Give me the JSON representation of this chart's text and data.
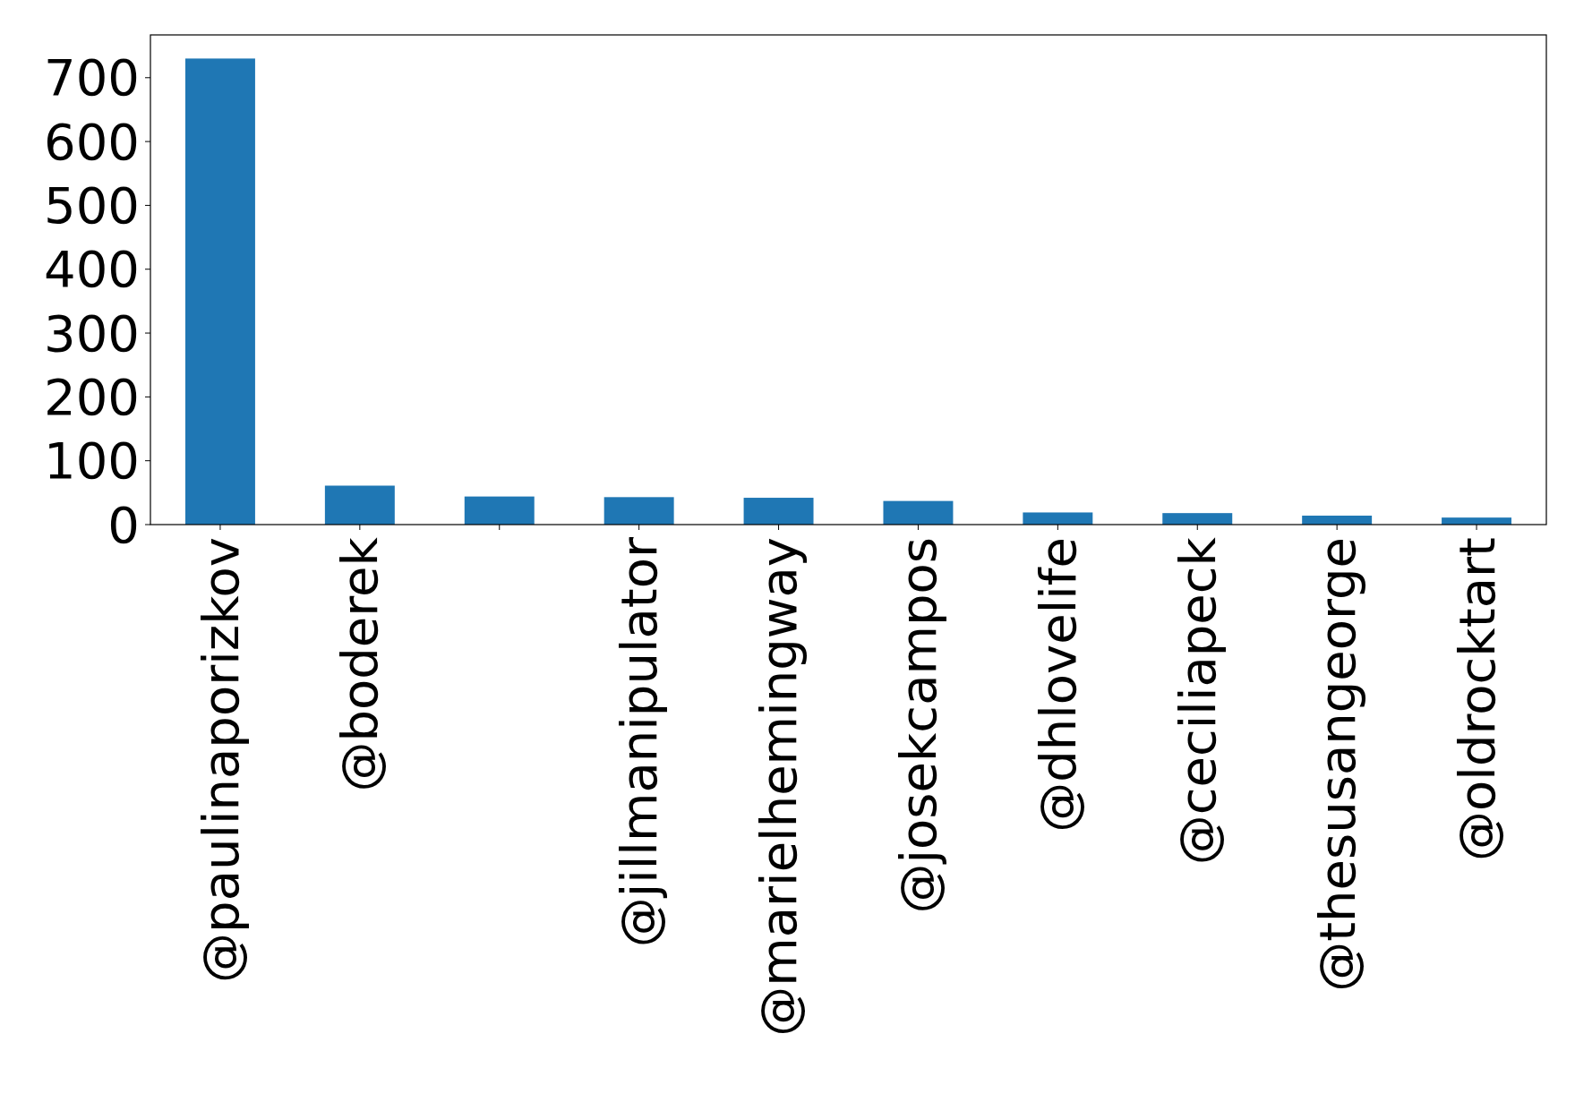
{
  "chart_data": {
    "type": "bar",
    "categories": [
      "@paulinaporizkov",
      "@boderek",
      null,
      "@jillmanipulator",
      "@marielhemingway",
      "@josekcampos",
      "@dhlovelife",
      "@ceciliapeck",
      "@thesusangeorge",
      "@oldrocktart"
    ],
    "values": [
      730,
      61,
      44,
      43,
      42,
      37,
      19,
      18,
      14,
      11
    ],
    "color": "#1f77b4",
    "ylim": [
      0,
      767
    ],
    "yticks": [
      0,
      100,
      200,
      300,
      400,
      500,
      600,
      700
    ],
    "grid": false
  }
}
